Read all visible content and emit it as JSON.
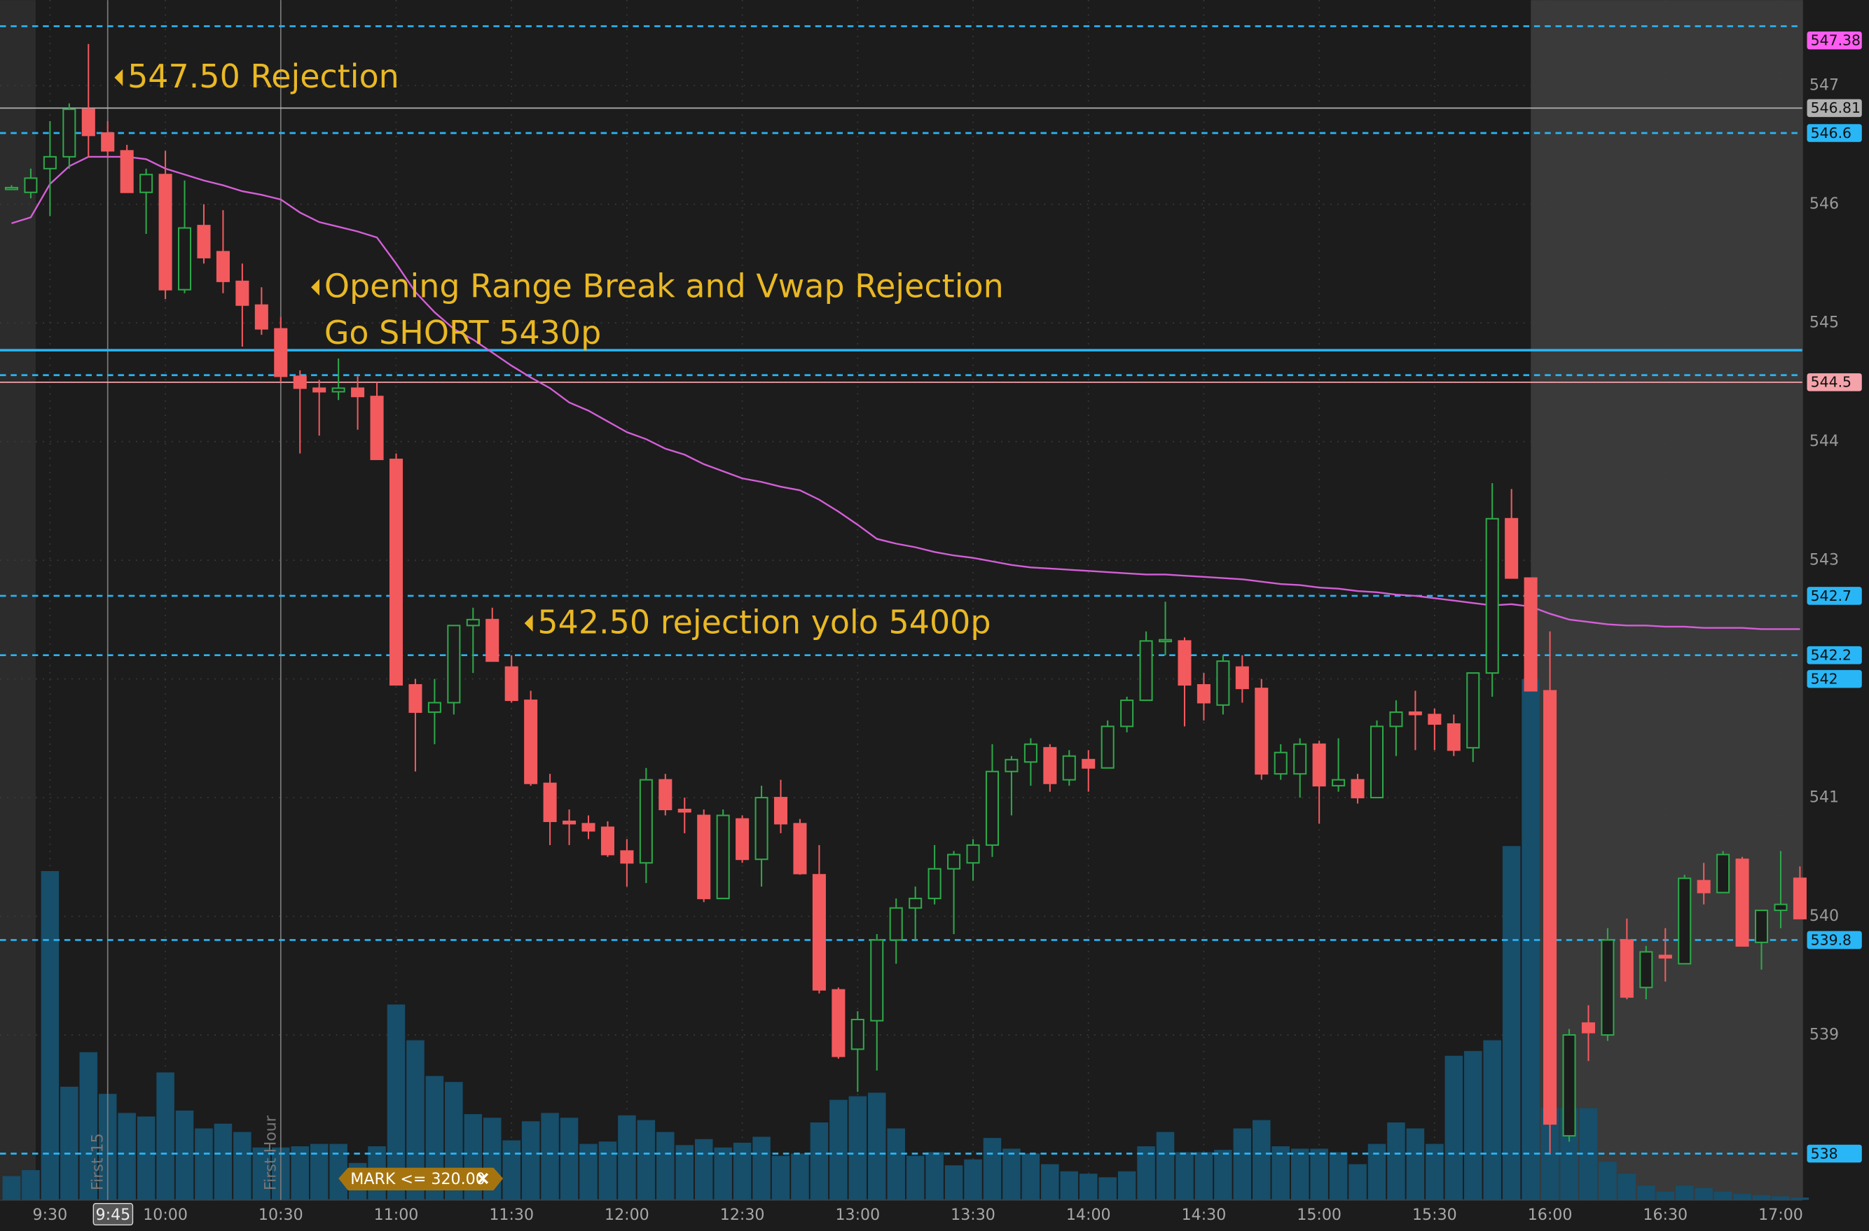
{
  "chart_data": {
    "type": "candlestick",
    "xlim": [
      557,
      1025.6
    ],
    "ylim": [
      537.61,
      547.72
    ],
    "yticks": [
      539,
      540,
      541,
      542,
      543,
      544,
      545,
      546,
      547
    ],
    "xticks": [
      {
        "value": 570,
        "label": "9:30"
      },
      {
        "value": 600,
        "label": "10:00"
      },
      {
        "value": 630,
        "label": "10:30"
      },
      {
        "value": 660,
        "label": "11:00"
      },
      {
        "value": 690,
        "label": "11:30"
      },
      {
        "value": 720,
        "label": "12:00"
      },
      {
        "value": 750,
        "label": "12:30"
      },
      {
        "value": 780,
        "label": "13:00"
      },
      {
        "value": 810,
        "label": "13:30"
      },
      {
        "value": 840,
        "label": "14:00"
      },
      {
        "value": 870,
        "label": "14:30"
      },
      {
        "value": 900,
        "label": "15:00"
      },
      {
        "value": 930,
        "label": "15:30"
      },
      {
        "value": 960,
        "label": "16:00"
      },
      {
        "value": 990,
        "label": "16:30"
      },
      {
        "value": 1020,
        "label": "17:00"
      }
    ],
    "grid": true,
    "regular_session": [
      570,
      960
    ],
    "up_color": "#2ea84a",
    "down_color": "#f25a5e",
    "volume_color": "#174e6a",
    "vwap_color": "#d45fd8",
    "x": [
      560,
      565,
      570,
      575,
      580,
      585,
      590,
      595,
      600,
      605,
      610,
      615,
      620,
      625,
      630,
      635,
      640,
      645,
      650,
      655,
      660,
      665,
      670,
      675,
      680,
      685,
      690,
      695,
      700,
      705,
      710,
      715,
      720,
      725,
      730,
      735,
      740,
      745,
      750,
      755,
      760,
      765,
      770,
      775,
      780,
      785,
      790,
      795,
      800,
      805,
      810,
      815,
      820,
      825,
      830,
      835,
      840,
      845,
      850,
      855,
      860,
      865,
      870,
      875,
      880,
      885,
      890,
      895,
      900,
      905,
      910,
      915,
      920,
      925,
      930,
      935,
      940,
      945,
      950,
      955,
      960,
      965,
      970,
      975,
      980,
      985,
      990,
      995,
      1000,
      1005,
      1010,
      1015,
      1020,
      1025
    ],
    "open": [
      546.14,
      546.1,
      546.3,
      546.4,
      546.8,
      546.6,
      546.45,
      546.1,
      546.25,
      545.28,
      545.82,
      545.6,
      545.35,
      545.15,
      544.95,
      544.55,
      544.45,
      544.42,
      544.45,
      544.38,
      543.85,
      541.95,
      541.72,
      541.8,
      542.45,
      542.5,
      542.1,
      541.82,
      541.12,
      540.8,
      540.78,
      540.75,
      540.55,
      540.45,
      541.15,
      540.9,
      540.85,
      540.15,
      540.82,
      540.48,
      541.0,
      540.78,
      540.35,
      539.38,
      538.88,
      539.12,
      539.8,
      540.07,
      540.15,
      540.4,
      540.45,
      540.6,
      541.22,
      541.3,
      541.42,
      541.15,
      541.32,
      541.25,
      541.6,
      541.82,
      542.32,
      542.32,
      541.95,
      541.78,
      542.1,
      541.92,
      541.2,
      541.2,
      541.45,
      541.1,
      541.15,
      541.0,
      541.6,
      541.72,
      541.7,
      541.62,
      541.42,
      542.05,
      543.35,
      542.85,
      541.9,
      538.15,
      539.1,
      539.0,
      539.8,
      539.4,
      539.67,
      539.6,
      540.3,
      540.2,
      540.48,
      539.78,
      540.05,
      540.32
    ],
    "high": [
      546.16,
      546.3,
      546.7,
      546.85,
      547.35,
      546.7,
      546.5,
      546.3,
      546.45,
      546.2,
      546.0,
      545.95,
      545.5,
      545.3,
      545.05,
      544.6,
      544.52,
      544.7,
      544.55,
      544.5,
      543.9,
      542.0,
      542.0,
      542.45,
      542.6,
      542.6,
      542.2,
      541.9,
      541.2,
      540.9,
      540.85,
      540.8,
      540.65,
      541.25,
      541.2,
      541.0,
      540.9,
      540.9,
      540.85,
      541.1,
      541.15,
      540.82,
      540.6,
      539.4,
      539.2,
      539.85,
      540.15,
      540.25,
      540.6,
      540.55,
      540.65,
      541.45,
      541.35,
      541.5,
      541.45,
      541.4,
      541.4,
      541.65,
      541.85,
      542.4,
      542.65,
      542.35,
      542.05,
      542.2,
      542.2,
      542.0,
      541.45,
      541.5,
      541.48,
      541.5,
      541.2,
      541.65,
      541.82,
      541.9,
      541.75,
      541.7,
      542.05,
      543.65,
      543.6,
      542.85,
      542.4,
      539.05,
      539.25,
      539.9,
      539.98,
      539.75,
      539.9,
      540.35,
      540.45,
      540.55,
      540.5,
      540.05,
      540.55,
      540.42
    ],
    "low": [
      546.12,
      546.05,
      545.9,
      546.3,
      546.4,
      546.4,
      546.1,
      545.75,
      545.2,
      545.25,
      545.5,
      545.25,
      544.8,
      544.9,
      544.5,
      543.9,
      544.05,
      544.35,
      544.1,
      543.85,
      541.95,
      541.22,
      541.45,
      541.7,
      542.05,
      542.15,
      541.8,
      541.1,
      540.6,
      540.6,
      540.65,
      540.5,
      540.25,
      540.28,
      540.85,
      540.7,
      540.12,
      540.15,
      540.45,
      540.25,
      540.7,
      540.35,
      539.35,
      538.8,
      538.52,
      538.7,
      539.6,
      539.8,
      540.1,
      539.85,
      540.3,
      540.5,
      540.85,
      541.1,
      541.05,
      541.1,
      541.05,
      541.25,
      541.55,
      541.82,
      542.2,
      541.6,
      541.65,
      541.7,
      541.8,
      541.15,
      541.15,
      541.0,
      540.78,
      541.05,
      540.95,
      541.0,
      541.35,
      541.4,
      541.4,
      541.35,
      541.3,
      541.85,
      542.85,
      541.9,
      538.0,
      538.1,
      538.78,
      538.95,
      539.3,
      539.3,
      539.45,
      539.6,
      540.1,
      540.2,
      539.75,
      539.55,
      539.9,
      539.98
    ],
    "close": [
      546.14,
      546.22,
      546.4,
      546.8,
      546.58,
      546.45,
      546.1,
      546.25,
      545.28,
      545.8,
      545.55,
      545.35,
      545.15,
      544.95,
      544.55,
      544.45,
      544.42,
      544.45,
      544.38,
      543.85,
      541.95,
      541.72,
      541.8,
      542.45,
      542.5,
      542.15,
      541.82,
      541.12,
      540.8,
      540.78,
      540.72,
      540.52,
      540.45,
      541.15,
      540.9,
      540.88,
      540.15,
      540.85,
      540.48,
      541.0,
      540.78,
      540.36,
      539.38,
      538.82,
      539.13,
      539.8,
      540.07,
      540.15,
      540.4,
      540.52,
      540.6,
      541.22,
      541.32,
      541.45,
      541.12,
      541.35,
      541.25,
      541.6,
      541.82,
      542.32,
      542.33,
      541.95,
      541.8,
      542.15,
      541.92,
      541.2,
      541.38,
      541.45,
      541.1,
      541.15,
      541.0,
      541.6,
      541.72,
      541.7,
      541.62,
      541.4,
      542.05,
      543.35,
      542.85,
      541.9,
      538.25,
      539.0,
      539.02,
      539.8,
      539.32,
      539.7,
      539.65,
      540.32,
      540.2,
      540.52,
      539.75,
      540.05,
      540.1,
      539.98
    ],
    "volume": [
      20,
      25,
      276,
      95,
      124,
      89,
      73,
      70,
      107,
      75,
      60,
      64,
      57,
      44,
      44,
      45,
      47,
      47,
      31,
      45,
      164,
      134,
      104,
      99,
      72,
      69,
      50,
      66,
      73,
      69,
      47,
      49,
      71,
      67,
      57,
      46,
      51,
      44,
      48,
      53,
      37,
      39,
      65,
      84,
      87,
      90,
      60,
      37,
      40,
      29,
      34,
      52,
      43,
      39,
      30,
      24,
      22,
      19,
      24,
      45,
      57,
      40,
      40,
      42,
      60,
      67,
      45,
      43,
      43,
      40,
      30,
      47,
      65,
      60,
      47,
      121,
      125,
      134,
      297,
      437,
      77,
      77,
      77,
      32,
      22,
      12,
      7,
      12,
      10,
      7,
      5,
      4,
      3,
      2
    ],
    "vwap": [
      545.84,
      545.89,
      546.17,
      546.32,
      546.4,
      546.4,
      546.4,
      546.38,
      546.3,
      546.25,
      546.2,
      546.16,
      546.11,
      546.08,
      546.04,
      545.93,
      545.85,
      545.81,
      545.77,
      545.72,
      545.5,
      545.26,
      545.09,
      544.95,
      544.86,
      544.75,
      544.64,
      544.54,
      544.45,
      544.33,
      544.26,
      544.17,
      544.08,
      544.02,
      543.94,
      543.89,
      543.81,
      543.75,
      543.69,
      543.66,
      543.62,
      543.59,
      543.51,
      543.41,
      543.3,
      543.18,
      543.14,
      543.11,
      543.07,
      543.04,
      543.02,
      542.99,
      542.96,
      542.94,
      542.93,
      542.92,
      542.91,
      542.9,
      542.89,
      542.88,
      542.88,
      542.87,
      542.86,
      542.85,
      542.84,
      542.82,
      542.8,
      542.79,
      542.77,
      542.76,
      542.74,
      542.73,
      542.71,
      542.7,
      542.68,
      542.66,
      542.64,
      542.62,
      542.63,
      542.61,
      542.55,
      542.5,
      542.48,
      542.46,
      542.45,
      542.45,
      542.44,
      542.44,
      542.43,
      542.43,
      542.43,
      542.42,
      542.42,
      542.42
    ],
    "levels": [
      {
        "value": 547.5,
        "style": "dashed",
        "color": "#29b6f6",
        "tag": false
      },
      {
        "value": 547.38,
        "style": "none",
        "color": "#ff5cf2",
        "tag": true
      },
      {
        "value": 546.81,
        "style": "thin",
        "color": "#b0b0b0",
        "tag": true
      },
      {
        "value": 546.6,
        "style": "dashed",
        "color": "#29b6f6",
        "tag": true
      },
      {
        "value": 544.77,
        "style": "solid",
        "color": "#29b6f6",
        "tag": false
      },
      {
        "value": 544.56,
        "style": "dashed",
        "color": "#29b6f6",
        "tag": false
      },
      {
        "value": 544.5,
        "style": "thin",
        "color": "#f4a3ab",
        "tag": true
      },
      {
        "value": 542.7,
        "style": "dashed",
        "color": "#29b6f6",
        "tag": true
      },
      {
        "value": 542.2,
        "style": "dashed",
        "color": "#29b6f6",
        "tag": true
      },
      {
        "value": 542,
        "style": "none",
        "color": "#29b6f6",
        "tag": true
      },
      {
        "value": 539.8,
        "style": "dashed",
        "color": "#29b6f6",
        "tag": true
      },
      {
        "value": 538,
        "style": "dashed",
        "color": "#29b6f6",
        "tag": true
      }
    ],
    "verticals": [
      {
        "value": 585,
        "label": "First 15"
      },
      {
        "value": 630,
        "label": "First Hour"
      }
    ],
    "cursor_time": {
      "value": 585,
      "label": "9:45"
    },
    "annotations": [
      {
        "lines": [
          "547.50 Rejection"
        ]
      },
      {
        "lines": [
          "Opening Range Break and Vwap Rejection",
          "Go SHORT 5430p"
        ]
      },
      {
        "lines": [
          "542.50 rejection yolo 5400p"
        ]
      }
    ],
    "annotation_color": "#e9b824",
    "alert": "MARK <= 320.00"
  }
}
